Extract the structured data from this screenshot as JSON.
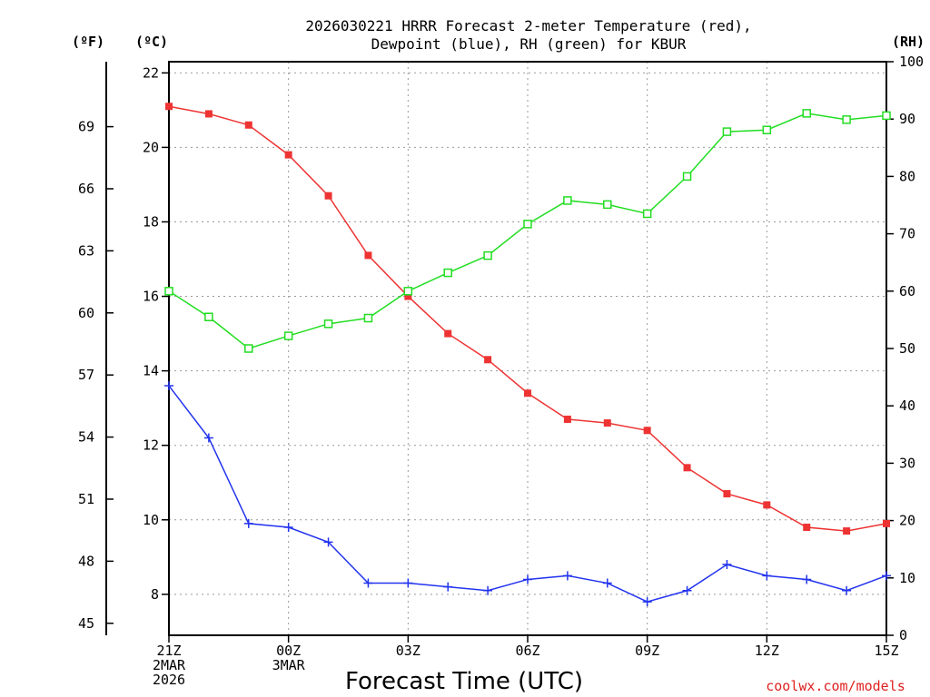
{
  "chart_data": {
    "type": "line",
    "title_lines": [
      "2026030221 HRRR Forecast 2-meter Temperature (red),",
      "Dewpoint (blue), RH (green) for KBUR"
    ],
    "xlabel": "Forecast Time (UTC)",
    "watermark": "coolwx.com/models",
    "unit_labels": {
      "f": "(ºF)",
      "c": "(ºC)",
      "rh": "(RH)"
    },
    "x": [
      0,
      1,
      2,
      3,
      4,
      5,
      6,
      7,
      8,
      9,
      10,
      11,
      12,
      13,
      14,
      15,
      16,
      17,
      18
    ],
    "xlim": [
      0,
      18
    ],
    "x_ticks": [
      {
        "x": 0,
        "lines": [
          "21Z",
          "2MAR",
          "2026"
        ]
      },
      {
        "x": 3,
        "lines": [
          "00Z",
          "3MAR"
        ]
      },
      {
        "x": 6,
        "lines": [
          "03Z"
        ]
      },
      {
        "x": 9,
        "lines": [
          "06Z"
        ]
      },
      {
        "x": 12,
        "lines": [
          "09Z"
        ]
      },
      {
        "x": 15,
        "lines": [
          "12Z"
        ]
      },
      {
        "x": 18,
        "lines": [
          "15Z"
        ]
      }
    ],
    "y_celsius": {
      "lim": [
        6.9,
        22.3
      ],
      "ticks": [
        8,
        10,
        12,
        14,
        16,
        18,
        20,
        22
      ]
    },
    "y_fahrenheit": {
      "ticks": [
        45,
        48,
        51,
        54,
        57,
        60,
        63,
        66,
        69
      ]
    },
    "y_rh": {
      "lim": [
        0,
        100
      ],
      "ticks": [
        0,
        10,
        20,
        30,
        40,
        50,
        60,
        70,
        80,
        90,
        100
      ]
    },
    "grid": true,
    "series": [
      {
        "name": "Temperature",
        "axis": "celsius",
        "color": "#ee3333",
        "marker": "filled-square",
        "values": [
          21.1,
          20.9,
          20.6,
          19.8,
          18.7,
          17.1,
          16.0,
          15.0,
          14.3,
          13.4,
          12.7,
          12.6,
          12.4,
          11.4,
          10.7,
          10.4,
          9.8,
          9.7,
          9.9
        ]
      },
      {
        "name": "Dewpoint",
        "axis": "celsius",
        "color": "#2233ee",
        "marker": "plus",
        "values": [
          13.6,
          12.2,
          9.9,
          9.8,
          9.4,
          8.3,
          8.3,
          8.2,
          8.1,
          8.4,
          8.5,
          8.3,
          7.8,
          8.1,
          8.8,
          8.5,
          8.4,
          8.1,
          8.5
        ]
      },
      {
        "name": "RH",
        "axis": "rh",
        "color": "#22dd22",
        "marker": "open-square",
        "values": [
          60,
          55.5,
          50,
          52.2,
          54.3,
          55.3,
          60,
          63.2,
          66.2,
          71.7,
          75.8,
          75.1,
          73.5,
          80,
          87.8,
          88.1,
          91,
          89.9,
          90.6
        ]
      }
    ]
  }
}
